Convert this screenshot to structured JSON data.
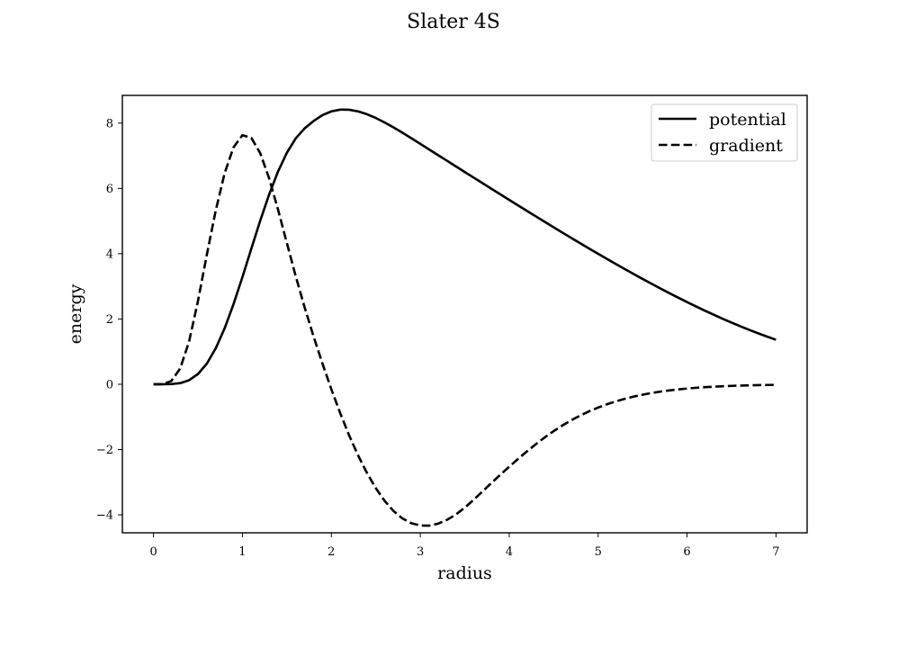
{
  "chart_data": {
    "type": "line",
    "title": "Slater 4S",
    "xlabel": "radius",
    "ylabel": "energy",
    "xlim": [
      -0.35,
      7.35
    ],
    "ylim": [
      -4.55,
      8.85
    ],
    "xticks": [
      0,
      1,
      2,
      3,
      4,
      5,
      6,
      7
    ],
    "yticks": [
      -4,
      -2,
      0,
      2,
      4,
      6,
      8
    ],
    "xtick_labels": [
      "0",
      "1",
      "2",
      "3",
      "4",
      "5",
      "6",
      "7"
    ],
    "ytick_labels": [
      "−4",
      "−2",
      "0",
      "2",
      "4",
      "6",
      "8"
    ],
    "grid": false,
    "legend_position": "top-right",
    "x": [
      0,
      0.1,
      0.2,
      0.3,
      0.4,
      0.5,
      0.6,
      0.7,
      0.8,
      0.9,
      1.0,
      1.1,
      1.2,
      1.3,
      1.4,
      1.5,
      1.6,
      1.7,
      1.8,
      1.9,
      2.0,
      2.1,
      2.2,
      2.3,
      2.4,
      2.5,
      2.6,
      2.7,
      2.8,
      2.9,
      3.0,
      3.1,
      3.2,
      3.3,
      3.4,
      3.5,
      3.6,
      3.7,
      3.8,
      3.9,
      4.0,
      4.1,
      4.2,
      4.3,
      4.4,
      4.5,
      4.6,
      4.7,
      4.8,
      4.9,
      5.0,
      5.1,
      5.2,
      5.3,
      5.4,
      5.5,
      5.6,
      5.7,
      5.8,
      5.9,
      6.0,
      6.1,
      6.2,
      6.3,
      6.4,
      6.5,
      6.6,
      6.7,
      6.8,
      6.9,
      7.0
    ],
    "series": [
      {
        "name": "potential",
        "style": "solid",
        "color": "#000000",
        "values": [
          0.0,
          0.0,
          0.006,
          0.035,
          0.124,
          0.313,
          0.633,
          1.102,
          1.716,
          2.456,
          3.284,
          4.153,
          5.011,
          5.812,
          6.515,
          7.094,
          7.535,
          7.842,
          8.065,
          8.246,
          8.361,
          8.414,
          8.411,
          8.361,
          8.274,
          8.158,
          8.02,
          7.868,
          7.705,
          7.537,
          7.366,
          7.193,
          7.021,
          6.849,
          6.676,
          6.504,
          6.333,
          6.161,
          5.99,
          5.82,
          5.649,
          5.48,
          5.311,
          5.143,
          4.975,
          4.809,
          4.644,
          4.48,
          4.318,
          4.157,
          3.997,
          3.839,
          3.683,
          3.529,
          3.377,
          3.227,
          3.08,
          2.935,
          2.793,
          2.654,
          2.518,
          2.385,
          2.256,
          2.13,
          2.008,
          1.89,
          1.776,
          1.666,
          1.561,
          1.46,
          1.363
        ]
      },
      {
        "name": "gradient",
        "style": "dashed",
        "color": "#000000",
        "values": [
          0.0,
          0.001,
          0.1,
          0.483,
          1.31,
          2.55,
          3.974,
          5.326,
          6.466,
          7.262,
          7.63,
          7.55,
          7.08,
          6.31,
          5.358,
          4.325,
          3.306,
          2.352,
          1.465,
          0.634,
          -0.152,
          -0.889,
          -1.565,
          -2.174,
          -2.715,
          -3.183,
          -3.575,
          -3.885,
          -4.111,
          -4.257,
          -4.327,
          -4.33,
          -4.27,
          -4.155,
          -3.99,
          -3.78,
          -3.539,
          -3.283,
          -3.024,
          -2.771,
          -2.524,
          -2.286,
          -2.055,
          -1.834,
          -1.627,
          -1.434,
          -1.258,
          -1.098,
          -0.955,
          -0.827,
          -0.713,
          -0.612,
          -0.523,
          -0.445,
          -0.377,
          -0.319,
          -0.268,
          -0.225,
          -0.188,
          -0.157,
          -0.13,
          -0.108,
          -0.089,
          -0.073,
          -0.06,
          -0.049,
          -0.04,
          -0.032,
          -0.026,
          -0.021,
          -0.017
        ]
      }
    ]
  }
}
